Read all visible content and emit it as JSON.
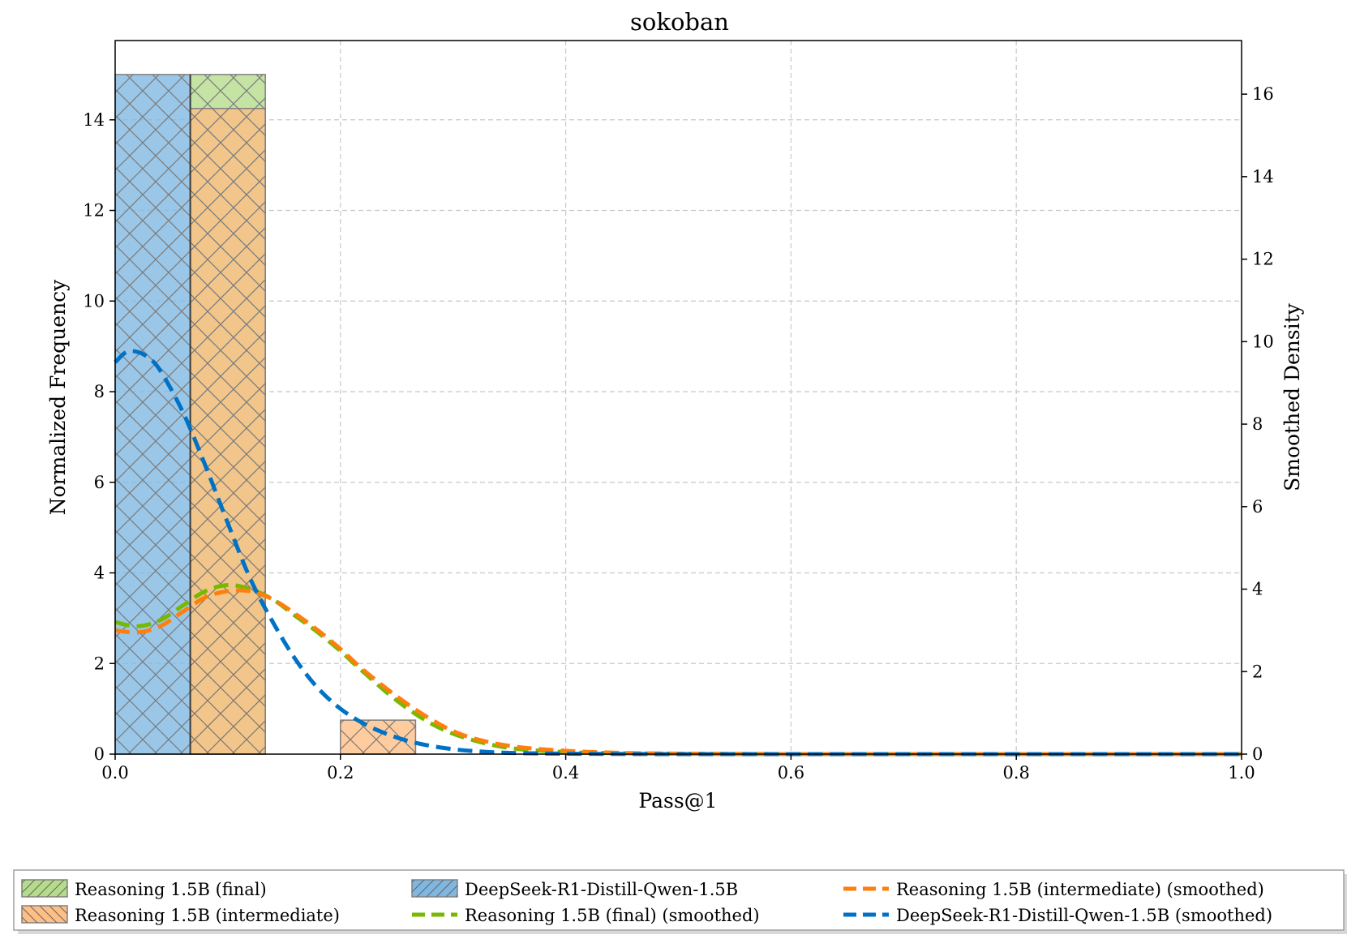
{
  "chart_data": {
    "type": "bar",
    "title": "sokoban",
    "xlabel": "Pass@1",
    "ylabel": "Normalized Frequency",
    "ylabel_right": "Smoothed Density",
    "xlim": [
      0.0,
      1.0
    ],
    "ylim": [
      0,
      15.75
    ],
    "ylim_right": [
      0,
      17.3
    ],
    "x_ticks": [
      "0.0",
      "0.2",
      "0.4",
      "0.6",
      "0.8",
      "1.0"
    ],
    "y_ticks": [
      "0",
      "2",
      "4",
      "6",
      "8",
      "10",
      "12",
      "14"
    ],
    "y_ticks_right": [
      "0",
      "2",
      "4",
      "6",
      "8",
      "10",
      "12",
      "14",
      "16"
    ],
    "grid": true,
    "legend_position": "below",
    "bin_width": 0.0667,
    "histograms": [
      {
        "name": "Reasoning 1.5B (final)",
        "color": "#b5dc8a",
        "bins": [
          {
            "x0": 0.0667,
            "x1": 0.1333,
            "value": 15.0
          }
        ]
      },
      {
        "name": "DeepSeek-R1-Distill-Qwen-1.5B",
        "color": "#7db7e2",
        "bins": [
          {
            "x0": 0.0,
            "x1": 0.0667,
            "value": 15.0
          }
        ]
      },
      {
        "name": "Reasoning 1.5B (intermediate)",
        "color": "#ffbe84",
        "bins": [
          {
            "x0": 0.0667,
            "x1": 0.1333,
            "value": 14.25
          },
          {
            "x0": 0.2,
            "x1": 0.2667,
            "value": 0.75
          }
        ]
      }
    ],
    "series": [
      {
        "name": "Reasoning 1.5B (final) (smoothed)",
        "color": "#76b900",
        "x": [
          0.0,
          0.02,
          0.04,
          0.06,
          0.08,
          0.1,
          0.12,
          0.14,
          0.16,
          0.18,
          0.2,
          0.22,
          0.25,
          0.28,
          0.31,
          0.35,
          0.4,
          0.45,
          0.5,
          0.6,
          0.7,
          0.8,
          0.9,
          1.0
        ],
        "y": [
          3.2,
          3.1,
          3.25,
          3.6,
          3.95,
          4.1,
          4.0,
          3.75,
          3.35,
          2.95,
          2.5,
          2.0,
          1.3,
          0.75,
          0.4,
          0.15,
          0.05,
          0.02,
          0.01,
          0.0,
          0.0,
          0.0,
          0.0,
          0.0
        ]
      },
      {
        "name": "Reasoning 1.5B (intermediate) (smoothed)",
        "color": "#ff7f0e",
        "x": [
          0.0,
          0.02,
          0.04,
          0.06,
          0.08,
          0.1,
          0.12,
          0.14,
          0.16,
          0.18,
          0.2,
          0.22,
          0.25,
          0.28,
          0.31,
          0.35,
          0.4,
          0.45,
          0.5,
          0.6,
          0.7,
          0.8,
          0.9,
          1.0
        ],
        "y": [
          3.0,
          2.95,
          3.1,
          3.45,
          3.8,
          3.95,
          3.95,
          3.75,
          3.4,
          3.0,
          2.55,
          2.05,
          1.4,
          0.85,
          0.45,
          0.2,
          0.08,
          0.03,
          0.01,
          0.0,
          0.0,
          0.0,
          0.0,
          0.0
        ]
      },
      {
        "name": "DeepSeek-R1-Distill-Qwen-1.5B (smoothed)",
        "color": "#0072c6",
        "x": [
          0.0,
          0.01,
          0.02,
          0.03,
          0.04,
          0.06,
          0.08,
          0.1,
          0.12,
          0.14,
          0.16,
          0.18,
          0.2,
          0.22,
          0.24,
          0.26,
          0.28,
          0.3,
          0.32,
          0.35,
          0.4,
          0.5,
          0.6,
          0.8,
          1.0
        ],
        "y": [
          9.5,
          9.75,
          9.75,
          9.6,
          9.3,
          8.3,
          7.0,
          5.6,
          4.25,
          3.2,
          2.3,
          1.6,
          1.1,
          0.75,
          0.5,
          0.32,
          0.2,
          0.12,
          0.07,
          0.03,
          0.01,
          0.0,
          0.0,
          0.0,
          0.0
        ]
      }
    ],
    "legend": [
      {
        "label": "Reasoning 1.5B (final)",
        "kind": "patch",
        "color": "#b5dc8a"
      },
      {
        "label": "Reasoning 1.5B (intermediate)",
        "kind": "patch",
        "color": "#ffbe84"
      },
      {
        "label": "DeepSeek-R1-Distill-Qwen-1.5B",
        "kind": "patch",
        "color": "#7db7e2"
      },
      {
        "label": "Reasoning 1.5B (final) (smoothed)",
        "kind": "line",
        "color": "#76b900"
      },
      {
        "label": "Reasoning 1.5B (intermediate) (smoothed)",
        "kind": "line",
        "color": "#ff7f0e"
      },
      {
        "label": "DeepSeek-R1-Distill-Qwen-1.5B (smoothed)",
        "kind": "line",
        "color": "#0072c6"
      }
    ]
  }
}
